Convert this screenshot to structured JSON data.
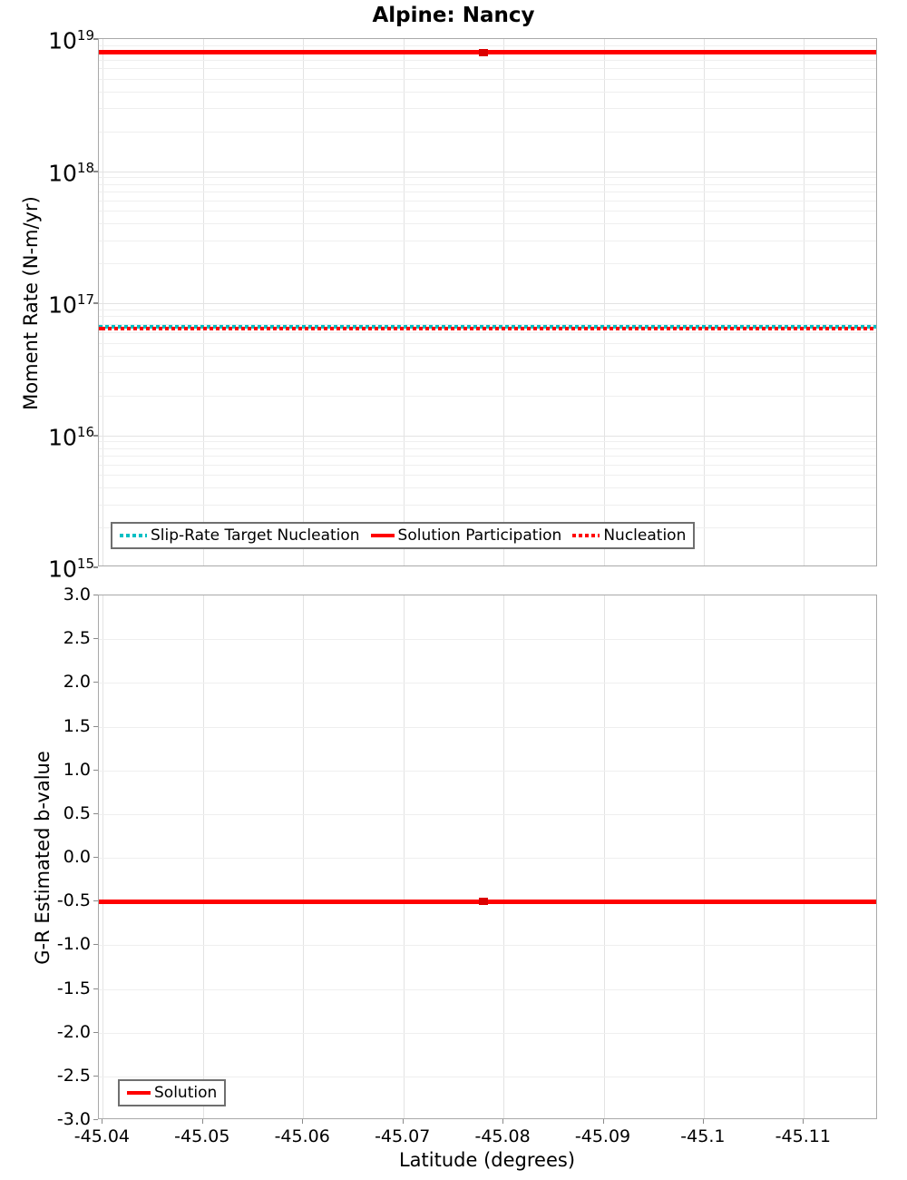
{
  "page": {
    "title": "Alpine: Nancy"
  },
  "colors": {
    "red": "#ff0000",
    "marker_red": "#dc0000",
    "teal": "#00bfc4",
    "axis_border": "#a9a9a9",
    "grid_minor": "#efefef",
    "grid_major": "#e3e3e3",
    "legend_border": "#6f6f6f"
  },
  "chart_data": [
    {
      "type": "line",
      "title": "Alpine: Nancy",
      "ylabel": "Moment Rate (N-m/yr)",
      "yscale": "log",
      "ylim": [
        1000000000000000.0,
        1e+19
      ],
      "ytick_exponents": [
        "19",
        "18",
        "17",
        "16",
        "15"
      ],
      "grid": true,
      "legend_position": "bottom-left-inside",
      "legend": [
        "Slip-Rate Target Nucleation",
        "Solution Participation",
        "Nucleation"
      ],
      "series": [
        {
          "name": "Slip-Rate Target Nucleation",
          "style": "dotted",
          "color": "#00bfc4",
          "y_value": 6.6e+16
        },
        {
          "name": "Solution Participation",
          "style": "solid",
          "color": "#ff0000",
          "y_value": 7.9e+18,
          "marker_latitude": -45.078
        },
        {
          "name": "Nucleation",
          "style": "dotted",
          "color": "#ff0000",
          "y_value": 6.4e+16
        }
      ]
    },
    {
      "type": "line",
      "ylabel": "G-R Estimated b-value",
      "xlabel": "Latitude (degrees)",
      "ylim": [
        -3.0,
        3.0
      ],
      "ytick_labels": [
        "3.0",
        "2.5",
        "2.0",
        "1.5",
        "1.0",
        "0.5",
        "0.0",
        "-0.5",
        "-1.0",
        "-1.5",
        "-2.0",
        "-2.5",
        "-3.0"
      ],
      "xlim": [
        -45.0396,
        -45.1174
      ],
      "x_axis_reversed": true,
      "xtick_labels": [
        "-45.04",
        "-45.05",
        "-45.06",
        "-45.07",
        "-45.08",
        "-45.09",
        "-45.1",
        "-45.11"
      ],
      "grid": true,
      "legend_position": "bottom-left-inside",
      "legend": [
        "Solution"
      ],
      "series": [
        {
          "name": "Solution",
          "style": "solid",
          "color": "#ff0000",
          "y_value": -0.5,
          "marker_latitude": -45.078
        }
      ]
    }
  ]
}
